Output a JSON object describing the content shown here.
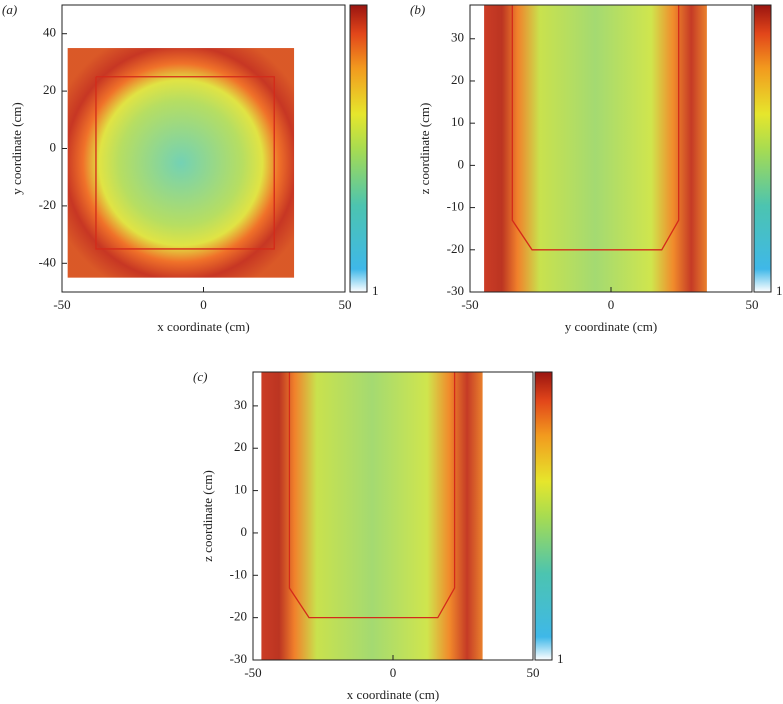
{
  "chart_data": [
    {
      "type": "heatmap",
      "panel_label": "(a)",
      "xlabel": "x coordinate (cm)",
      "ylabel": "y coordinate (cm)",
      "xlim": [
        -50,
        50
      ],
      "ylim": [
        -50,
        50
      ],
      "xticks": [
        -50,
        0,
        50
      ],
      "yticks": [
        -40,
        -20,
        0,
        20,
        40
      ],
      "outline": {
        "x": [
          -38,
          25,
          25,
          -38,
          -38
        ],
        "y": [
          25,
          25,
          -35,
          -35,
          25
        ]
      },
      "outline_color": "#d42a1a",
      "colorbar_label": "1"
    },
    {
      "type": "heatmap",
      "panel_label": "(b)",
      "xlabel": "y coordinate (cm)",
      "ylabel": "z coordinate (cm)",
      "xlim": [
        -50,
        50
      ],
      "ylim": [
        -30,
        38
      ],
      "xticks": [
        -50,
        0,
        50
      ],
      "yticks": [
        -30,
        -20,
        -10,
        0,
        10,
        20,
        30
      ],
      "outline": {
        "x": [
          -35,
          -35,
          -28,
          18,
          24,
          24
        ],
        "y": [
          38,
          -13,
          -20,
          -20,
          -13,
          38
        ]
      },
      "outline_color": "#d42a1a",
      "colorbar_label": "1"
    },
    {
      "type": "heatmap",
      "panel_label": "(c)",
      "xlabel": "x coordinate (cm)",
      "ylabel": "z coordinate (cm)",
      "xlim": [
        -50,
        50
      ],
      "ylim": [
        -30,
        38
      ],
      "xticks": [
        -50,
        0,
        50
      ],
      "yticks": [
        -30,
        -20,
        -10,
        0,
        10,
        20,
        30
      ],
      "outline": {
        "x": [
          -37,
          -37,
          -30,
          16,
          22,
          22
        ],
        "y": [
          38,
          -13,
          -20,
          -20,
          -13,
          38
        ]
      },
      "outline_color": "#d42a1a",
      "colorbar_label": "1"
    }
  ]
}
